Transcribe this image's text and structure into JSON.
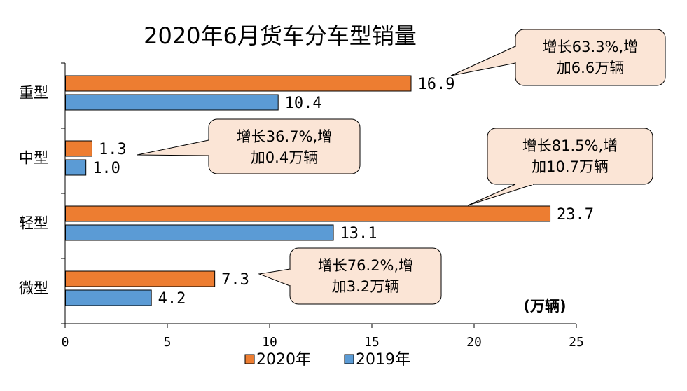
{
  "chart_data": {
    "type": "bar",
    "orientation": "horizontal",
    "title": "2020年6月货车分车型销量",
    "unit_label": "(万辆)",
    "categories": [
      "重型",
      "中型",
      "轻型",
      "微型"
    ],
    "series": [
      {
        "name": "2020年",
        "color": "#ED7D31",
        "values": [
          16.9,
          1.3,
          23.7,
          7.3
        ],
        "labels": [
          "16.9",
          "1.3",
          "23.7",
          "7.3"
        ]
      },
      {
        "name": "2019年",
        "color": "#5B9BD5",
        "values": [
          10.4,
          1.0,
          13.1,
          4.2
        ],
        "labels": [
          "10.4",
          "1.0",
          "13.1",
          "4.2"
        ]
      }
    ],
    "xlim": [
      0,
      25
    ],
    "x_ticks": [
      0,
      5,
      10,
      15,
      20,
      25
    ],
    "x_tick_labels": [
      "0",
      "5",
      "10",
      "15",
      "20",
      "25"
    ],
    "grid": false,
    "legend_position": "bottom",
    "annotations": [
      {
        "category": "重型",
        "lines": [
          "增长63.3%,增",
          "加6.6万辆"
        ]
      },
      {
        "category": "中型",
        "lines": [
          "增长36.7%,增",
          "加0.4万辆"
        ]
      },
      {
        "category": "轻型",
        "lines": [
          "增长81.5%,增",
          "加10.7万辆"
        ]
      },
      {
        "category": "微型",
        "lines": [
          "增长76.2%,增",
          "加3.2万辆"
        ]
      }
    ],
    "callout_fill": "#FBE5D6"
  }
}
